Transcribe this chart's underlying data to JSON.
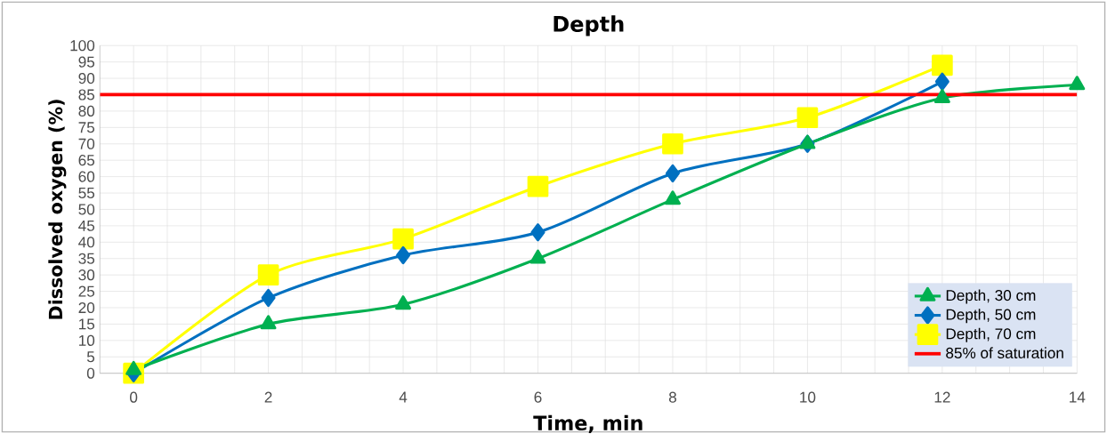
{
  "chart_data": {
    "type": "line",
    "title": "Depth",
    "xlabel": "Time, min",
    "ylabel": "Dissolved oxygen (%)",
    "xlim": [
      -0.5,
      14
    ],
    "ylim": [
      0,
      100
    ],
    "xticks": [
      0,
      2,
      4,
      6,
      8,
      10,
      12,
      14
    ],
    "yticks": [
      0,
      5,
      10,
      15,
      20,
      25,
      30,
      35,
      40,
      45,
      50,
      55,
      60,
      65,
      70,
      75,
      80,
      85,
      90,
      95,
      100
    ],
    "grid": true,
    "legend": "bottom right",
    "series": [
      {
        "name": "Depth, 30 cm",
        "color": "#00b050",
        "marker": "triangle",
        "x": [
          0,
          2,
          4,
          6,
          8,
          10,
          12,
          14
        ],
        "values": [
          1,
          15,
          21,
          35,
          53,
          70,
          84,
          88
        ]
      },
      {
        "name": "Depth, 50 cm",
        "color": "#0070c0",
        "marker": "diamond",
        "x": [
          0,
          2,
          4,
          6,
          8,
          10,
          12
        ],
        "values": [
          0,
          23,
          36,
          43,
          61,
          70,
          89
        ]
      },
      {
        "name": "Depth, 70 cm",
        "color": "#ffff00",
        "marker": "square",
        "x": [
          0,
          2,
          4,
          6,
          8,
          10,
          12
        ],
        "values": [
          0,
          30,
          41,
          57,
          70,
          78,
          94
        ]
      }
    ],
    "ref_lines": [
      {
        "axis": "y",
        "value": 85,
        "label": "85% of saturation",
        "color": "#ff0000"
      }
    ]
  }
}
